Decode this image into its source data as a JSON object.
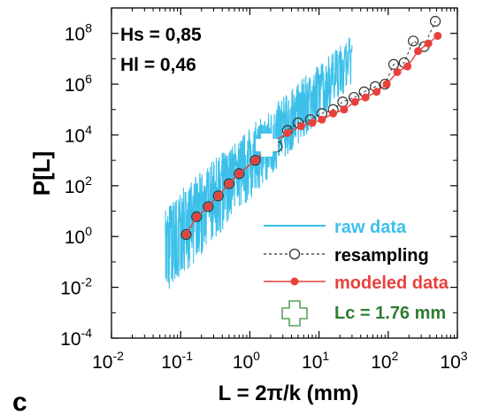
{
  "panel_label": "c",
  "chart_data": {
    "type": "scatter",
    "xlabel": "L = 2π/k (mm)",
    "ylabel": "P[L]",
    "xscale": "log",
    "yscale": "log",
    "xlim": [
      0.01,
      1000
    ],
    "ylim": [
      0.0001,
      1000000000
    ],
    "x_ticks": [
      0.01,
      0.1,
      1,
      10,
      100,
      1000
    ],
    "x_tick_labels": [
      {
        "base": "10",
        "exp": "-2"
      },
      {
        "base": "10",
        "exp": "-1"
      },
      {
        "base": "10",
        "exp": "0"
      },
      {
        "base": "10",
        "exp": "1"
      },
      {
        "base": "10",
        "exp": "2"
      },
      {
        "base": "10",
        "exp": "3"
      }
    ],
    "y_ticks": [
      0.0001,
      0.01,
      1,
      100,
      10000,
      1000000,
      100000000
    ],
    "y_tick_labels": [
      {
        "base": "10",
        "exp": "-4"
      },
      {
        "base": "10",
        "exp": "-2"
      },
      {
        "base": "10",
        "exp": "0"
      },
      {
        "base": "10",
        "exp": "2"
      },
      {
        "base": "10",
        "exp": "4"
      },
      {
        "base": "10",
        "exp": "6"
      },
      {
        "base": "10",
        "exp": "8"
      }
    ],
    "annotations": [
      "Hs = 0,85",
      "Hl = 0,46"
    ],
    "legend_position": "bottom-right",
    "series": [
      {
        "name": "raw data",
        "style": "line",
        "color": "#3cc0ea",
        "x_range": [
          0.06,
          30
        ],
        "trend": {
          "exponent": 2.7,
          "y_at_1": 2000
        },
        "spread_decades": 2.3
      },
      {
        "name": "resampling",
        "style": "dashed-open-circles",
        "color": "#333333",
        "points": [
          {
            "x": 0.12,
            "y": 1.2
          },
          {
            "x": 0.17,
            "y": 6
          },
          {
            "x": 0.25,
            "y": 15
          },
          {
            "x": 0.35,
            "y": 40
          },
          {
            "x": 0.5,
            "y": 120
          },
          {
            "x": 0.7,
            "y": 300
          },
          {
            "x": 1.2,
            "y": 1000
          },
          {
            "x": 2.5,
            "y": 3500
          },
          {
            "x": 3.5,
            "y": 15000
          },
          {
            "x": 5,
            "y": 30000
          },
          {
            "x": 7.5,
            "y": 40000
          },
          {
            "x": 11,
            "y": 70000
          },
          {
            "x": 16,
            "y": 100000
          },
          {
            "x": 22,
            "y": 200000
          },
          {
            "x": 32,
            "y": 300000
          },
          {
            "x": 45,
            "y": 500000
          },
          {
            "x": 65,
            "y": 800000
          },
          {
            "x": 90,
            "y": 1000000
          },
          {
            "x": 120,
            "y": 6000000
          },
          {
            "x": 170,
            "y": 7000000
          },
          {
            "x": 230,
            "y": 50000000
          },
          {
            "x": 330,
            "y": 30000000
          },
          {
            "x": 480,
            "y": 300000000
          }
        ]
      },
      {
        "name": "modeled data",
        "style": "line-filled-circles",
        "color": "#e8413c",
        "points": [
          {
            "x": 0.12,
            "y": 1.2
          },
          {
            "x": 0.17,
            "y": 6
          },
          {
            "x": 0.25,
            "y": 15
          },
          {
            "x": 0.35,
            "y": 40
          },
          {
            "x": 0.5,
            "y": 120
          },
          {
            "x": 0.7,
            "y": 300
          },
          {
            "x": 1.2,
            "y": 1000
          },
          {
            "x": 2.1,
            "y": 5000
          },
          {
            "x": 3.5,
            "y": 12000
          },
          {
            "x": 5.5,
            "y": 22000
          },
          {
            "x": 8,
            "y": 30000
          },
          {
            "x": 11,
            "y": 40000
          },
          {
            "x": 16,
            "y": 70000
          },
          {
            "x": 23,
            "y": 100000
          },
          {
            "x": 33,
            "y": 200000
          },
          {
            "x": 47,
            "y": 300000
          },
          {
            "x": 68,
            "y": 500000
          },
          {
            "x": 95,
            "y": 1000000
          },
          {
            "x": 135,
            "y": 3000000
          },
          {
            "x": 190,
            "y": 5000000
          },
          {
            "x": 270,
            "y": 20000000
          },
          {
            "x": 380,
            "y": 40000000
          },
          {
            "x": 520,
            "y": 80000000
          }
        ]
      },
      {
        "name": "Lc = 1.76 mm",
        "style": "cross-marker",
        "color": "#2e7d32",
        "points": [
          {
            "x": 1.76,
            "y": 4000
          }
        ]
      }
    ]
  }
}
